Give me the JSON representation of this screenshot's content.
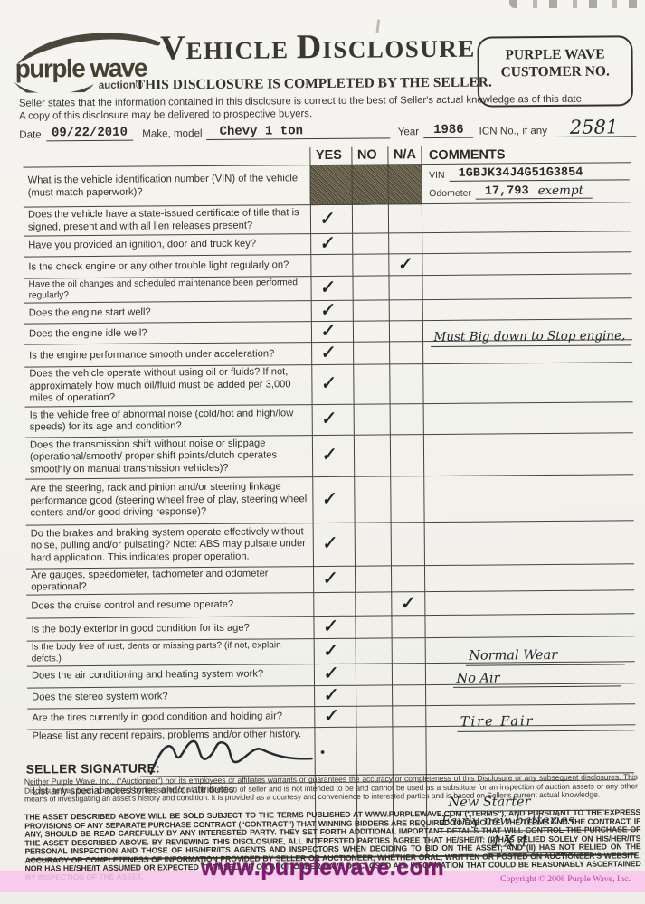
{
  "page": {
    "bg": "#f2f1ec",
    "ink": "#34322c",
    "table_line": "#46433b",
    "pink_band": "#f9c6ee",
    "watermark_color": "#7c1a6e",
    "copyright_color": "#b93da0",
    "logo_color": "#4b463a"
  },
  "header": {
    "logo_text": "purple wave",
    "logo_sub": "auction®",
    "title_parts": [
      "V",
      "EHICLE ",
      "D",
      "ISCLOSURE"
    ],
    "customer_box": [
      "PURPLE WAVE",
      "CUSTOMER NO."
    ],
    "subtitle": "THIS DISCLOSURE IS COMPLETED BY THE SELLER.",
    "statement_line1": "Seller states that the information contained in this disclosure is correct to the best of Seller's actual knowledge as of this date.",
    "statement_line2": "A copy of this disclosure may be delivered to prospective buyers."
  },
  "meta": {
    "date_label": "Date",
    "date_value": "09/22/2010",
    "make_label": "Make, model",
    "make_value": "Chevy  1 ton",
    "year_label": "Year",
    "year_value": "1986",
    "icn_label": "ICN No., if any",
    "icn_value": "2581"
  },
  "table": {
    "headers": [
      "YES",
      "NO",
      "N/A",
      "COMMENTS"
    ],
    "check_mark": "✓",
    "rows": [
      {
        "q": "What is the vehicle identification number (VIN) of the vehicle (must match paperwork)?",
        "check": "",
        "hatched": true,
        "fields": [
          {
            "label": "VIN",
            "value": "1GBJK34J4G51G3854"
          },
          {
            "label": "Odometer",
            "value": "17,793",
            "suffix": "exempt"
          }
        ]
      },
      {
        "q": "Does the vehicle have a state-issued certificate of title that is signed, present and with all lien releases present?",
        "check": "yes"
      },
      {
        "q": "Have you provided an ignition, door and truck key?",
        "check": "yes"
      },
      {
        "q": "Is the check engine or any other trouble light regularly on?",
        "check": "na"
      },
      {
        "q": "Have the oil changes and scheduled maintenance been performed regularly?",
        "check": "yes",
        "small": true
      },
      {
        "q": "Does the engine start well?",
        "check": "yes"
      },
      {
        "q": "Does the engine idle well?",
        "check": "yes",
        "comments": [
          "Must Big down to Stop engine,"
        ]
      },
      {
        "q": "Is the engine performance smooth under acceleration?",
        "check": "yes"
      },
      {
        "q": "Does the vehicle operate without using oil or fluids?  If not, approximately how much oil/fluid must be added per 3,000 miles of operation?",
        "check": "yes"
      },
      {
        "q": "Is the vehicle free of abnormal noise (cold/hot and high/low speeds) for its age and condition?",
        "check": "yes"
      },
      {
        "q": "Does the transmission shift without noise or slippage (operational/smooth/ proper shift points/clutch operates smoothly on manual transmission vehicles)?",
        "check": "yes"
      },
      {
        "q": "Are the steering, rack and pinion and/or steering linkage performance good (steering wheel free of play, steering wheel centers and/or good driving response)?",
        "check": "yes"
      },
      {
        "q": "Do the brakes and braking system operate effectively without noise, pulling and/or pulsating? Note: ABS may pulsate under hard application.  This indicates proper operation.",
        "check": "yes"
      },
      {
        "q": "Are gauges, speedometer, tachometer and odometer operational?",
        "check": "yes"
      },
      {
        "q": "Does the cruise control and resume operate?",
        "check": "na"
      },
      {
        "q": "Is the body exterior in good condition for its age?",
        "check": "yes"
      },
      {
        "q": "Is the body free of rust, dents or missing parts? (if not, explain defcts.)",
        "check": "yes",
        "small": true,
        "comments": [
          "Normal Wear"
        ]
      },
      {
        "q": "Does the air conditioning and heating system work?",
        "check": "yes",
        "comments": [
          "No Air"
        ]
      },
      {
        "q": "Does the stereo system work?",
        "check": "yes"
      },
      {
        "q": "Are the tires currently in good condition and holding air?",
        "check": "yes",
        "comments": [
          "Tire Fair"
        ]
      },
      {
        "q": "Please list any recent repairs, problems and/or other history.",
        "check": ""
      },
      {
        "q": "List any special accessories and/or attributes.",
        "check": "",
        "comments": [
          "New Starter",
          "Fairly new batteries",
          "4X4"
        ]
      }
    ]
  },
  "signature_label": "SELLER SIGNATURE:",
  "disclaimer": "Neither Purple Wave, Inc., (“Auctioneer”) nor its employees or affiliates warrants or guarantees the accuracy or completeness of this Disclosure or any subsequent disclosures.  This Disclosure has been completed by the seller or at the direction of seller and is not intended to be and cannot be used as a substitute for an inspection of auction assets or any other means of investigating an asset's history and condition.  It is provided as a courtesy and convenience to interested parties and is based on Seller's current actual knowledge.",
  "terms": "THE ASSET DESCRIBED ABOVE WILL BE SOLD SUBJECT TO THE TERMS  PUBLISHED AT WWW.PURPLEWAVE.COM (“TERMS”), AND PURSUANT TO THE EXPRESS PROVISIONS OF ANY SEPARATE PURCHASE CONTRACT (“CONTRACT”) THAT WINNING BIDDERS ARE REQUIRED TO EXECUTE.  THE TERMS AND THE CONTRACT, IF ANY, SHOULD BE READ CAREFULLY BY ANY INTERESTED PARTY.  THEY SET FORTH ADDITIONAL IMPORTANT DETAILS THAT WILL CONTROL THE PURCHASE OF THE ASSET DESCRIBED ABOVE.  BY REVIEWING THIS DISCLOSURE,  ALL INTERESTED PARTIES AGREE THAT HE/SHE/IT:  (I) HAS RELIED SOLELY ON HIS/HER/ITS PERSONAL INSPECTION AND THOSE OF HIS/HER/ITS AGENTS AND INSPECTORS WHEN DECIDING TO BID ON THE ASSET; AND (II) HAS NOT RELIED ON THE ACCURACY OR COMPLETENESS OF INFORMATION PROVIDED BY SELLER OR AUCTIONEER, WHETHER ORAL, WRITTEN OR POSTED ON AUCTIONEER'S WEBSITE, NOR HAS HE/SHE/IT ASSUMED OR EXPECTED THAT SELLER OR AUCTIONEER HAVE DISCLOSED ALL INFORMATION THAT COULD BE REASONABLY ASCERTAINED BY INSPECTION OF THE ASSET.",
  "footer": {
    "watermark": "www.purplewave.com",
    "copyright": "Copyright © 2008 Purple Wave, Inc."
  }
}
